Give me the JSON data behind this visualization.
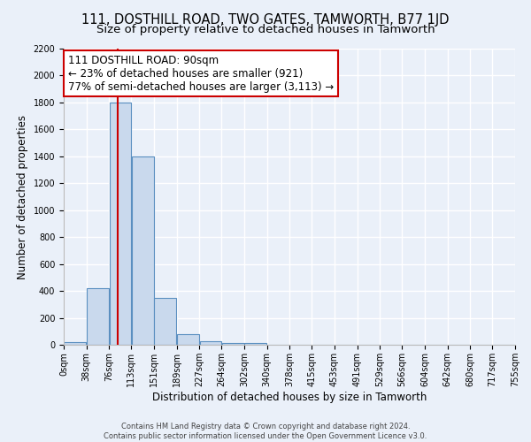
{
  "title": "111, DOSTHILL ROAD, TWO GATES, TAMWORTH, B77 1JD",
  "subtitle": "Size of property relative to detached houses in Tamworth",
  "xlabel": "Distribution of detached houses by size in Tamworth",
  "ylabel": "Number of detached properties",
  "bin_edges": [
    0,
    38,
    76,
    113,
    151,
    189,
    227,
    264,
    302,
    340,
    378,
    415,
    453,
    491,
    529,
    566,
    604,
    642,
    680,
    717,
    755
  ],
  "bin_counts": [
    20,
    420,
    1800,
    1400,
    350,
    80,
    25,
    10,
    10,
    0,
    0,
    0,
    0,
    0,
    0,
    0,
    0,
    0,
    0,
    0
  ],
  "bar_facecolor": "#c9d9ed",
  "bar_edgecolor": "#5a8fc0",
  "vline_x": 90,
  "vline_color": "#cc0000",
  "annotation_text_line1": "111 DOSTHILL ROAD: 90sqm",
  "annotation_text_line2": "← 23% of detached houses are smaller (921)",
  "annotation_text_line3": "77% of semi-detached houses are larger (3,113) →",
  "annotation_box_edgecolor": "#cc0000",
  "annotation_box_facecolor": "#ffffff",
  "ylim": [
    0,
    2200
  ],
  "yticks": [
    0,
    200,
    400,
    600,
    800,
    1000,
    1200,
    1400,
    1600,
    1800,
    2000,
    2200
  ],
  "xtick_labels": [
    "0sqm",
    "38sqm",
    "76sqm",
    "113sqm",
    "151sqm",
    "189sqm",
    "227sqm",
    "264sqm",
    "302sqm",
    "340sqm",
    "378sqm",
    "415sqm",
    "453sqm",
    "491sqm",
    "529sqm",
    "566sqm",
    "604sqm",
    "642sqm",
    "680sqm",
    "717sqm",
    "755sqm"
  ],
  "footer_line1": "Contains HM Land Registry data © Crown copyright and database right 2024.",
  "footer_line2": "Contains public sector information licensed under the Open Government Licence v3.0.",
  "bg_color": "#eaf0f9",
  "plot_bg_color": "#eaf0f9",
  "grid_color": "#ffffff",
  "title_fontsize": 10.5,
  "subtitle_fontsize": 9.5,
  "axis_label_fontsize": 8.5,
  "tick_fontsize": 7,
  "annotation_fontsize": 8.5,
  "footer_fontsize": 6
}
